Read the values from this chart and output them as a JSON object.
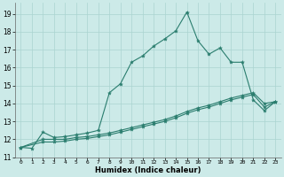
{
  "xlabel": "Humidex (Indice chaleur)",
  "bg_color": "#cceae8",
  "grid_color": "#aad4d0",
  "line_color": "#2a7d6e",
  "xlim": [
    -0.5,
    23.5
  ],
  "ylim": [
    11,
    19.6
  ],
  "xticks": [
    0,
    1,
    2,
    3,
    4,
    5,
    6,
    7,
    8,
    9,
    10,
    11,
    12,
    13,
    14,
    15,
    16,
    17,
    18,
    19,
    20,
    21,
    22,
    23
  ],
  "yticks": [
    11,
    12,
    13,
    14,
    15,
    16,
    17,
    18,
    19
  ],
  "line1_x": [
    0,
    1,
    2,
    3,
    4,
    5,
    6,
    7,
    8,
    9,
    10,
    11,
    12,
    13,
    14,
    15,
    16,
    17,
    18,
    19,
    20,
    21,
    22,
    23
  ],
  "line1_y": [
    11.55,
    11.5,
    12.4,
    12.1,
    12.15,
    12.25,
    12.35,
    12.5,
    14.6,
    15.1,
    16.3,
    16.65,
    17.2,
    17.6,
    18.05,
    19.1,
    17.5,
    16.75,
    17.1,
    16.3,
    16.3,
    14.2,
    13.6,
    14.1
  ],
  "line2_x": [
    0,
    2,
    3,
    4,
    5,
    6,
    7,
    8,
    9,
    10,
    11,
    12,
    13,
    14,
    15,
    16,
    17,
    18,
    19,
    20,
    21,
    22,
    23
  ],
  "line2_y": [
    11.55,
    12.0,
    12.0,
    12.0,
    12.1,
    12.15,
    12.25,
    12.35,
    12.5,
    12.65,
    12.8,
    12.95,
    13.1,
    13.3,
    13.55,
    13.75,
    13.9,
    14.1,
    14.3,
    14.45,
    14.6,
    14.0,
    14.1
  ],
  "line3_x": [
    0,
    2,
    3,
    4,
    5,
    6,
    7,
    8,
    9,
    10,
    11,
    12,
    13,
    14,
    15,
    16,
    17,
    18,
    19,
    20,
    21,
    22,
    23
  ],
  "line3_y": [
    11.55,
    11.85,
    11.85,
    11.9,
    12.0,
    12.05,
    12.15,
    12.25,
    12.4,
    12.55,
    12.7,
    12.85,
    13.0,
    13.2,
    13.45,
    13.65,
    13.8,
    14.0,
    14.2,
    14.35,
    14.5,
    13.8,
    14.1
  ]
}
